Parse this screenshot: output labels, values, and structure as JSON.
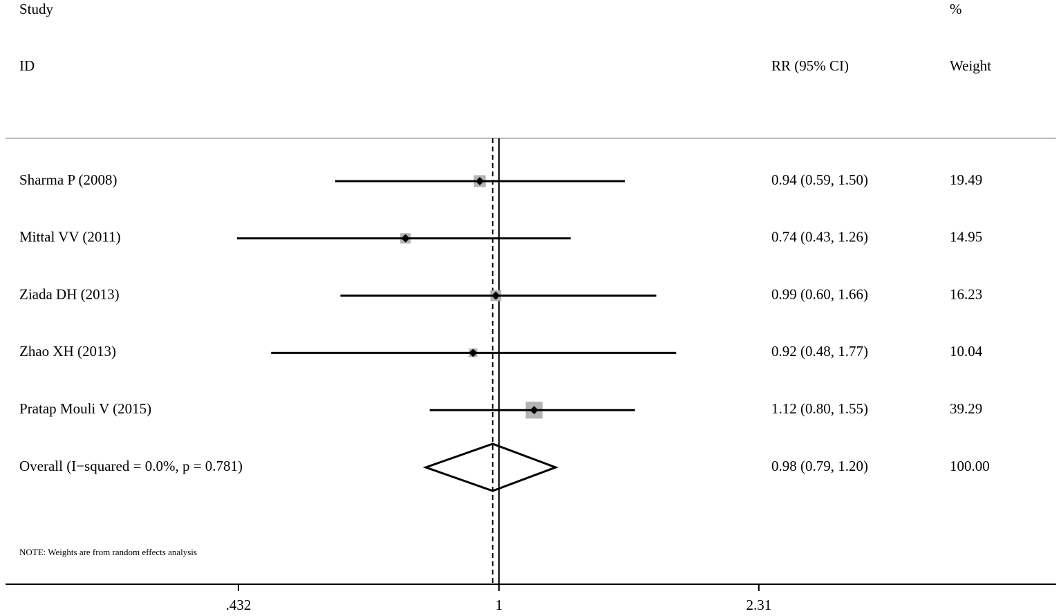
{
  "chart_data": {
    "type": "forest",
    "headers": {
      "study": "Study",
      "id": "ID",
      "effect": "RR (95% CI)",
      "percent": "%",
      "weight": "Weight"
    },
    "categories": [
      "Sharma P (2008)",
      "Mittal VV (2011)",
      "Ziada DH (2013)",
      "Zhao XH (2013)",
      "Pratap Mouli V (2015)"
    ],
    "values": [
      0.94,
      0.74,
      0.99,
      0.92,
      1.12
    ],
    "lower": [
      0.59,
      0.43,
      0.6,
      0.48,
      0.8
    ],
    "upper": [
      1.5,
      1.26,
      1.66,
      1.77,
      1.55
    ],
    "value_labels": [
      "0.94 (0.59, 1.50)",
      "0.74 (0.43, 1.26)",
      "0.99 (0.60, 1.66)",
      "0.92 (0.48, 1.77)",
      "1.12 (0.80, 1.55)"
    ],
    "weights": [
      19.49,
      14.95,
      16.23,
      10.04,
      39.29
    ],
    "overall": {
      "label": "Overall  (I−squared = 0.0%, p = 0.781)",
      "value": 0.98,
      "lower": 0.79,
      "upper": 1.2,
      "value_label": "0.98 (0.79, 1.20)",
      "weight": 100,
      "weight_label": "100.00"
    },
    "note": "NOTE: Weights are from random effects analysis",
    "log_scale": true,
    "reference_line": 1,
    "xlim": [
      0.204,
      6.02
    ],
    "xticks": [
      {
        "value": 0.432,
        "label": ".432"
      },
      1,
      2.31
    ],
    "box_color": "#b4b4b4"
  }
}
